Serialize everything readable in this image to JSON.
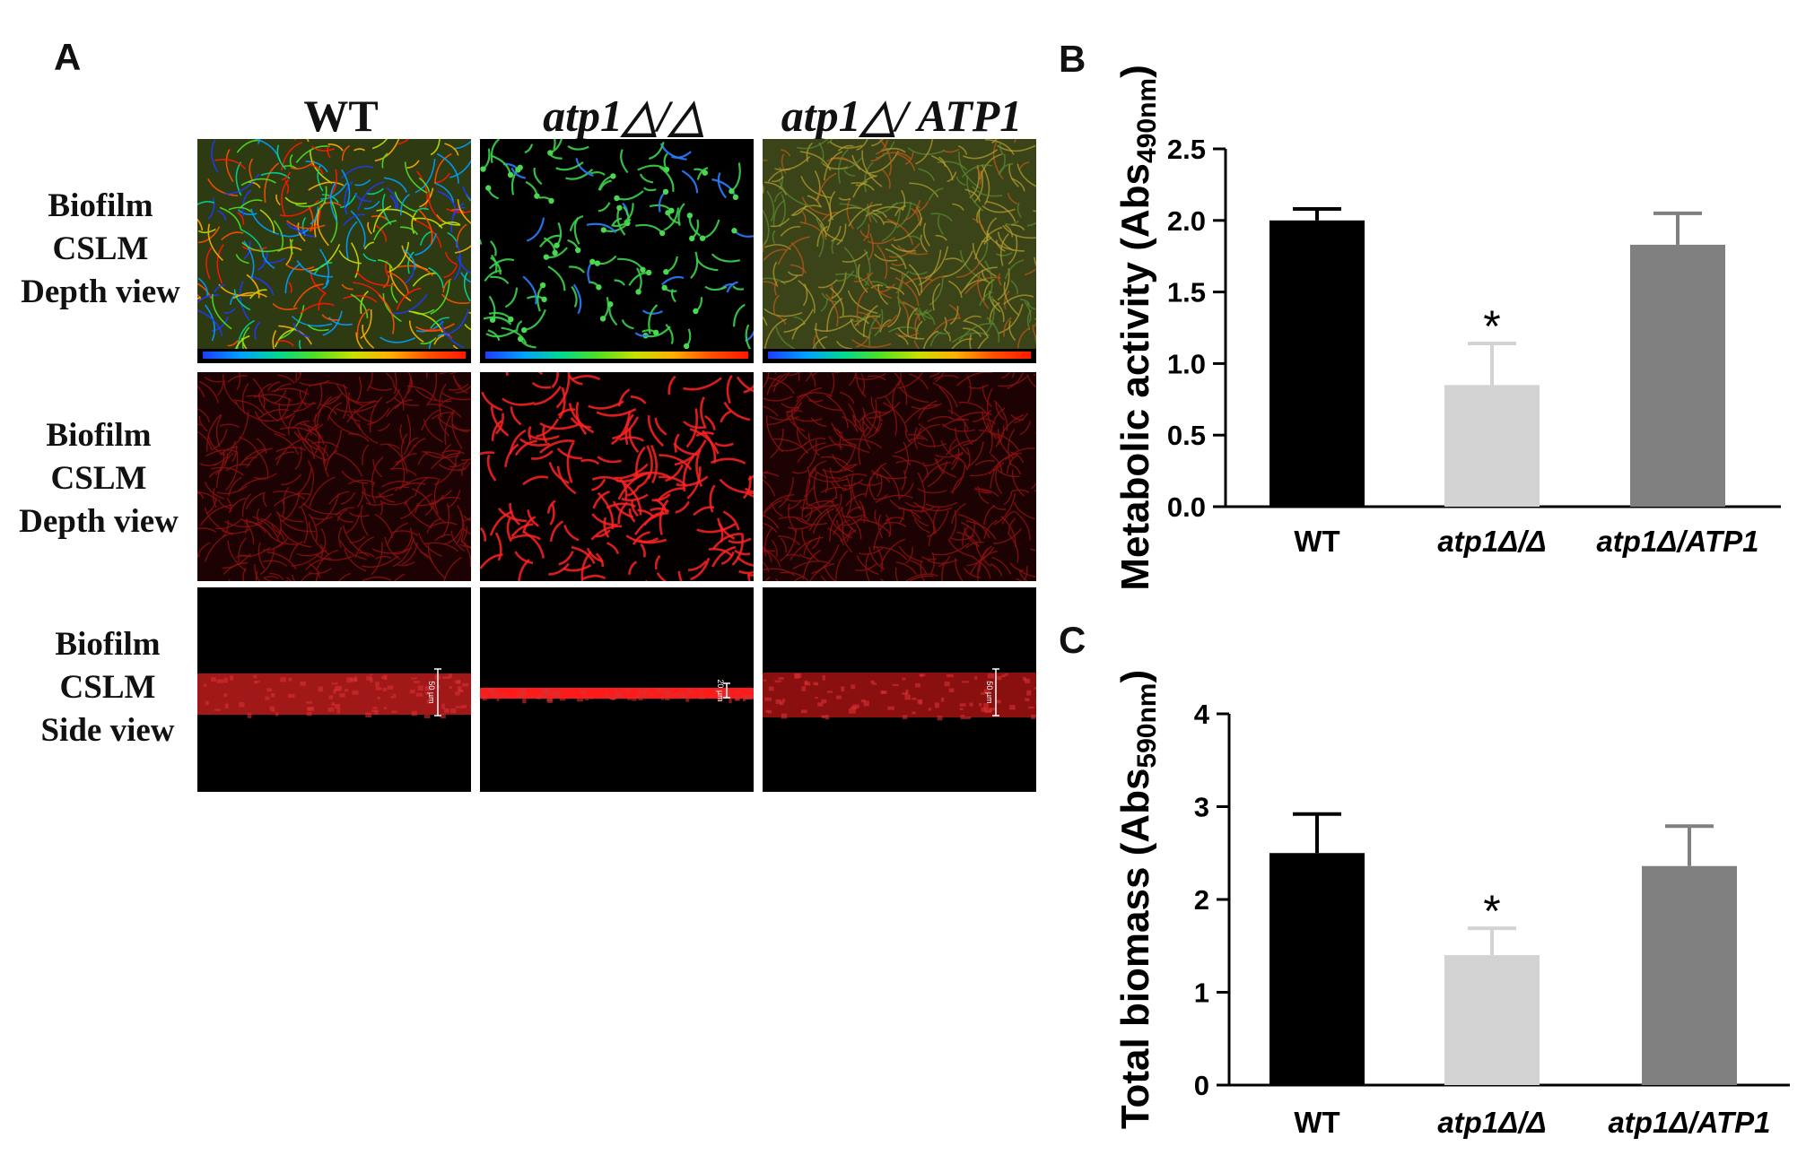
{
  "panels": {
    "a": "A",
    "b": "B",
    "c": "C"
  },
  "columns": [
    "WT",
    "atp1△/△",
    "atp1△/ ATP1"
  ],
  "rows": [
    {
      "lines": [
        "Biofilm",
        "CSLM",
        "Depth view"
      ],
      "style": "depth-color"
    },
    {
      "lines": [
        "Biofilm",
        "CSLM",
        "Depth view"
      ],
      "style": "depth-red"
    },
    {
      "lines": [
        "Biofilm",
        "CSLM",
        "Side view"
      ],
      "style": "side"
    }
  ],
  "scale_labels": [
    "50 µm",
    "20 µm",
    "50 µm"
  ],
  "colors": {
    "wt": "#000000",
    "mutant": "#d3d3d3",
    "complemented": "#808080"
  },
  "chart_data": [
    {
      "type": "bar",
      "panel": "B",
      "categories": [
        "WT",
        "atp1Δ/Δ",
        "atp1Δ/ATP1"
      ],
      "values": [
        2.0,
        0.85,
        1.83
      ],
      "errors": [
        0.08,
        0.29,
        0.22
      ],
      "significance": [
        "",
        "*",
        ""
      ],
      "ylabel": "Metabolic activity (Abs",
      "ylabel_sub": "490nm",
      "ylabel_close": ")",
      "ylim": [
        0,
        2.5
      ],
      "yticks": [
        "0.0",
        "0.5",
        "1.0",
        "1.5",
        "2.0",
        "2.5"
      ],
      "ytick_values": [
        0,
        0.5,
        1.0,
        1.5,
        2.0,
        2.5
      ],
      "bar_colors": [
        "#000000",
        "#d3d3d3",
        "#808080"
      ]
    },
    {
      "type": "bar",
      "panel": "C",
      "categories": [
        "WT",
        "atp1Δ/Δ",
        "atp1Δ/ATP1"
      ],
      "values": [
        2.5,
        1.4,
        2.36
      ],
      "errors": [
        0.42,
        0.29,
        0.43
      ],
      "significance": [
        "",
        "*",
        ""
      ],
      "ylabel": "Total biomass (Abs",
      "ylabel_sub": "590nm",
      "ylabel_close": ")",
      "ylim": [
        0,
        4
      ],
      "yticks": [
        "0",
        "1",
        "2",
        "3",
        "4"
      ],
      "ytick_values": [
        0,
        1,
        2,
        3,
        4
      ],
      "bar_colors": [
        "#000000",
        "#d3d3d3",
        "#808080"
      ]
    }
  ]
}
